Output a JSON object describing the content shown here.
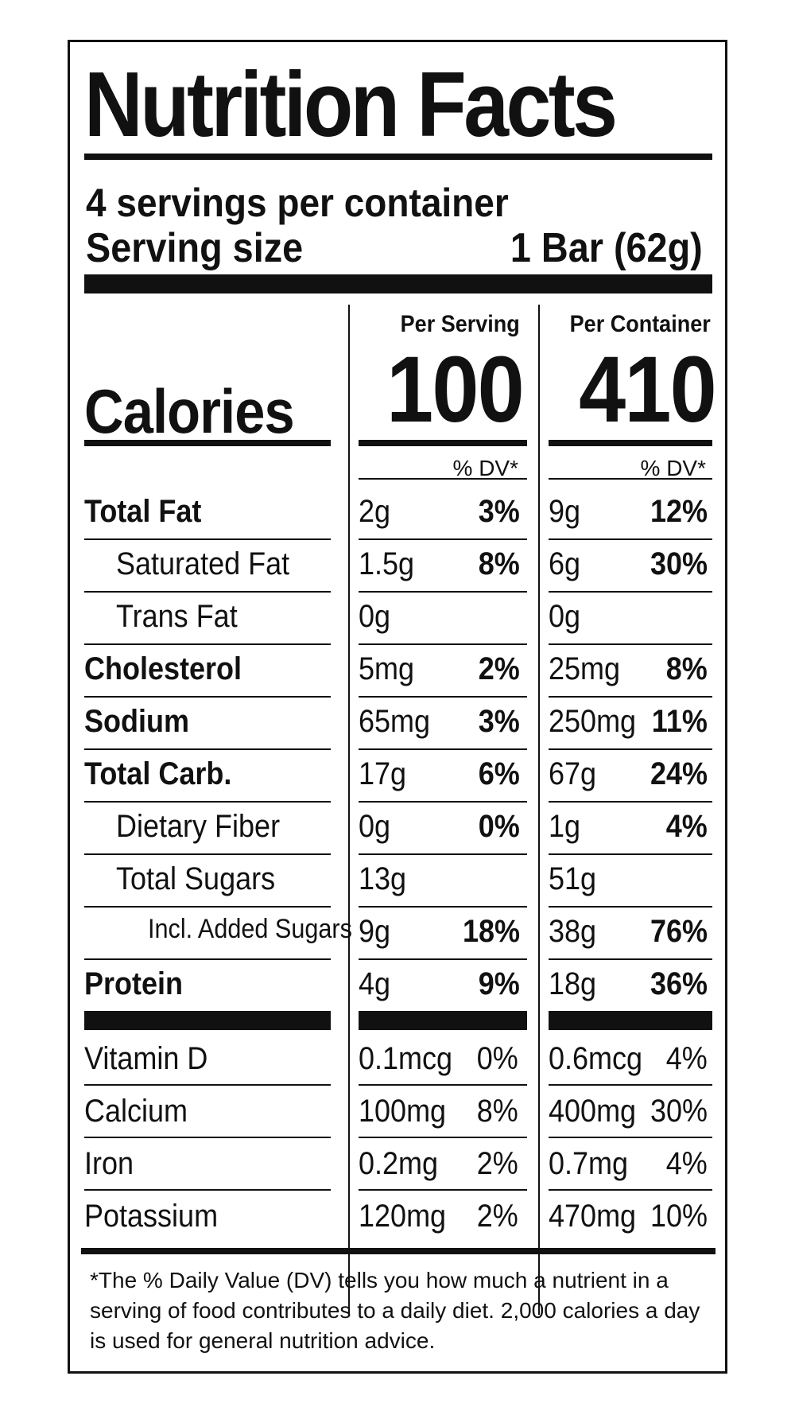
{
  "title": "Nutrition Facts",
  "servings_per_container": "4 servings per container",
  "serving_size": {
    "label": "Serving size",
    "value": "1 Bar (62g)"
  },
  "columns": {
    "per_serving": {
      "header": "Per Serving",
      "calories": "100",
      "dv_header": "% DV*"
    },
    "per_container": {
      "header": "Per Container",
      "calories": "410",
      "dv_header": "% DV*"
    }
  },
  "calories_label": "Calories",
  "nutrients": [
    {
      "name": "Total Fat",
      "bold": true,
      "indent": 0,
      "serving_amount": "2g",
      "serving_dv": "3%",
      "container_amount": "9g",
      "container_dv": "12%"
    },
    {
      "name": "Saturated Fat",
      "bold": false,
      "indent": 1,
      "serving_amount": "1.5g",
      "serving_dv": "8%",
      "container_amount": "6g",
      "container_dv": "30%"
    },
    {
      "name": "Trans Fat",
      "bold": false,
      "indent": 1,
      "serving_amount": "0g",
      "serving_dv": "",
      "container_amount": "0g",
      "container_dv": ""
    },
    {
      "name": "Cholesterol",
      "bold": true,
      "indent": 0,
      "serving_amount": "5mg",
      "serving_dv": "2%",
      "container_amount": "25mg",
      "container_dv": "8%"
    },
    {
      "name": "Sodium",
      "bold": true,
      "indent": 0,
      "serving_amount": "65mg",
      "serving_dv": "3%",
      "container_amount": "250mg",
      "container_dv": "11%"
    },
    {
      "name": "Total Carb.",
      "bold": true,
      "indent": 0,
      "serving_amount": "17g",
      "serving_dv": "6%",
      "container_amount": "67g",
      "container_dv": "24%"
    },
    {
      "name": "Dietary Fiber",
      "bold": false,
      "indent": 1,
      "serving_amount": "0g",
      "serving_dv": "0%",
      "container_amount": "1g",
      "container_dv": "4%"
    },
    {
      "name": "Total Sugars",
      "bold": false,
      "indent": 1,
      "serving_amount": "13g",
      "serving_dv": "",
      "container_amount": "51g",
      "container_dv": ""
    },
    {
      "name": "Incl. Added Sugars",
      "bold": false,
      "indent": 2,
      "serving_amount": "9g",
      "serving_dv": "18%",
      "container_amount": "38g",
      "container_dv": "76%"
    },
    {
      "name": "Protein",
      "bold": true,
      "indent": 0,
      "serving_amount": "4g",
      "serving_dv": "9%",
      "container_amount": "18g",
      "container_dv": "36%"
    }
  ],
  "vitamins": [
    {
      "name": "Vitamin D",
      "serving_amount": "0.1mcg",
      "serving_dv": "0%",
      "container_amount": "0.6mcg",
      "container_dv": "4%"
    },
    {
      "name": "Calcium",
      "serving_amount": "100mg",
      "serving_dv": "8%",
      "container_amount": "400mg",
      "container_dv": "30%"
    },
    {
      "name": "Iron",
      "serving_amount": "0.2mg",
      "serving_dv": "2%",
      "container_amount": "0.7mg",
      "container_dv": "4%"
    },
    {
      "name": "Potassium",
      "serving_amount": "120mg",
      "serving_dv": "2%",
      "container_amount": "470mg",
      "container_dv": "10%"
    }
  ],
  "footnote": "*The % Daily Value (DV) tells you how much a nutrient in a serving of food contributes to a daily diet. 2,000 calories a day is used for general nutrition advice."
}
